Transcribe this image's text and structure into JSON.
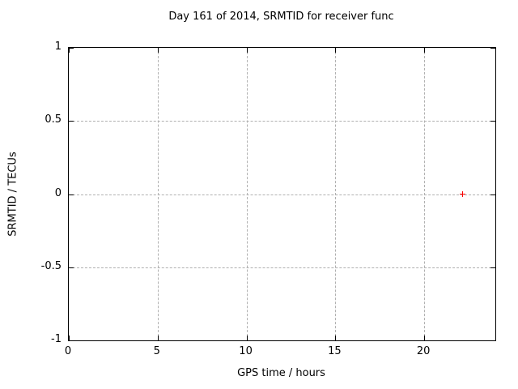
{
  "title": "Day 161 of 2014, SRMTID for receiver func",
  "colors": {
    "background": "#ffffff",
    "axis": "#000000",
    "grid": "#b0b0b0",
    "text": "#000000",
    "marker": "#ff0000"
  },
  "chart_data": {
    "type": "scatter",
    "title": "Day 161 of 2014, SRMTID for receiver func",
    "xlabel": "GPS time / hours",
    "ylabel": "SRMTID / TECUs",
    "xlim": [
      0,
      24
    ],
    "ylim": [
      -1,
      1
    ],
    "xticks": [
      0,
      5,
      10,
      15,
      20
    ],
    "yticks": [
      1,
      0.5,
      0,
      -0.5,
      -1
    ],
    "grid": true,
    "legend": "none",
    "series": [
      {
        "name": "SRMTID",
        "marker": "plus",
        "color": "#ff0000",
        "points": [
          {
            "x": 22.2,
            "y": 0
          }
        ]
      }
    ]
  }
}
